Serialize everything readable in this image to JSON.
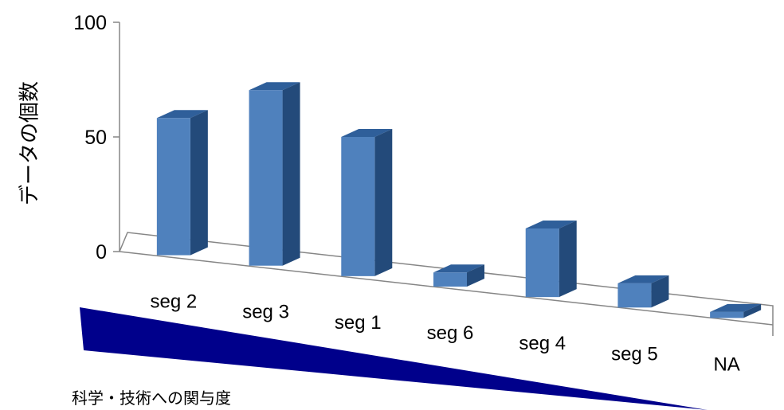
{
  "chart_data": {
    "type": "bar",
    "categories": [
      "seg 2",
      "seg 3",
      "seg 1",
      "seg 6",
      "seg 4",
      "seg 5",
      "NA"
    ],
    "values": [
      68,
      87,
      69,
      7,
      34,
      12,
      3
    ],
    "ylabel": "データの個数",
    "yticks": [
      0,
      50,
      100
    ],
    "ylim": [
      0,
      100
    ],
    "grid": false,
    "colors": {
      "front": "#4f81bd",
      "top": "#2f5f9a",
      "side": "#234a7a",
      "axis": "#868686"
    }
  },
  "annotation": {
    "caption": "科学・技術への関与度",
    "wedge_color": "#00008b"
  }
}
